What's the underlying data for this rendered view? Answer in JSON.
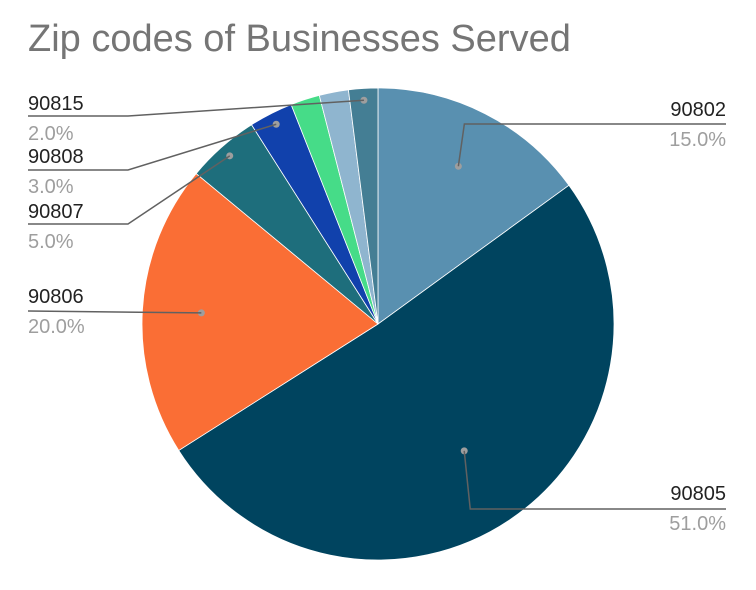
{
  "chart_data": {
    "type": "pie",
    "title": "Zip codes of Businesses Served",
    "slices": [
      {
        "label": "90802",
        "value": 15.0,
        "display": "15.0%",
        "color": "#5990b0"
      },
      {
        "label": "90805",
        "value": 51.0,
        "display": "51.0%",
        "color": "#00445f"
      },
      {
        "label": "90806",
        "value": 20.0,
        "display": "20.0%",
        "color": "#fa6e35"
      },
      {
        "label": "90807",
        "value": 5.0,
        "display": "5.0%",
        "color": "#1e6e7c"
      },
      {
        "label": "90808",
        "value": 3.0,
        "display": "3.0%",
        "color": "#1141ac"
      },
      {
        "label": "",
        "value": 2.0,
        "display": "",
        "color": "#46dc88"
      },
      {
        "label": "",
        "value": 2.0,
        "display": "",
        "color": "#8fb5cf"
      },
      {
        "label": "90815",
        "value": 2.0,
        "display": "2.0%",
        "color": "#447e94"
      }
    ]
  }
}
